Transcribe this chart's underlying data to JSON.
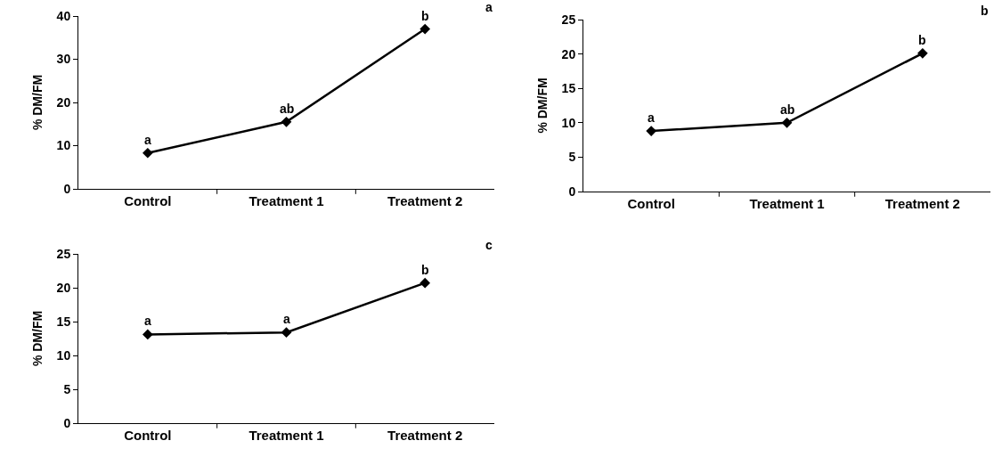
{
  "chart_data": [
    {
      "type": "line",
      "ylabel": "% DM/FM",
      "categories": [
        "Control",
        "Treatment 1",
        "Treatment 2"
      ],
      "series": [
        {
          "color": "#000000",
          "values": [
            8.3,
            15.5,
            37
          ]
        }
      ],
      "ylim": [
        0,
        40
      ],
      "yticks": [
        0,
        10,
        20,
        30,
        40
      ],
      "grid": false,
      "marker": "diamond",
      "line_style": "solid",
      "annotations": [
        "a",
        {
          "text": "a",
          "x": "Control",
          "y": 8.3
        },
        {
          "text": "ab",
          "x": "Treatment 1",
          "y": 15.5
        },
        {
          "text": "b",
          "x": "Treatment 2",
          "y": 37
        }
      ]
    },
    {
      "type": "line",
      "ylabel": "% DM/FM",
      "categories": [
        "Control",
        "Treatment 1",
        "Treatment 2"
      ],
      "series": [
        {
          "color": "#000000",
          "values": [
            8.8,
            10,
            20.1
          ]
        }
      ],
      "ylim": [
        0,
        25
      ],
      "yticks": [
        0,
        5,
        10,
        15,
        20,
        25
      ],
      "grid": false,
      "marker": "diamond",
      "line_style": "solid",
      "annotations": [
        "b",
        {
          "text": "a",
          "x": "Control",
          "y": 8.8
        },
        {
          "text": "ab",
          "x": "Treatment 1",
          "y": 10
        },
        {
          "text": "b",
          "x": "Treatment 2",
          "y": 20.1
        }
      ]
    },
    {
      "type": "line",
      "ylabel": "% DM/FM",
      "categories": [
        "Control",
        "Treatment 1",
        "Treatment 2"
      ],
      "series": [
        {
          "color": "#000000",
          "values": [
            13.1,
            13.4,
            20.7
          ]
        }
      ],
      "ylim": [
        0,
        25
      ],
      "yticks": [
        0,
        5,
        10,
        15,
        20,
        25
      ],
      "grid": false,
      "marker": "diamond",
      "line_style": "solid",
      "annotations": [
        "c",
        {
          "text": "a",
          "x": "Control",
          "y": 13.1
        },
        {
          "text": "a",
          "x": "Treatment 1",
          "y": 13.4
        },
        {
          "text": "b",
          "x": "Treatment 2",
          "y": 20.7
        }
      ]
    }
  ]
}
